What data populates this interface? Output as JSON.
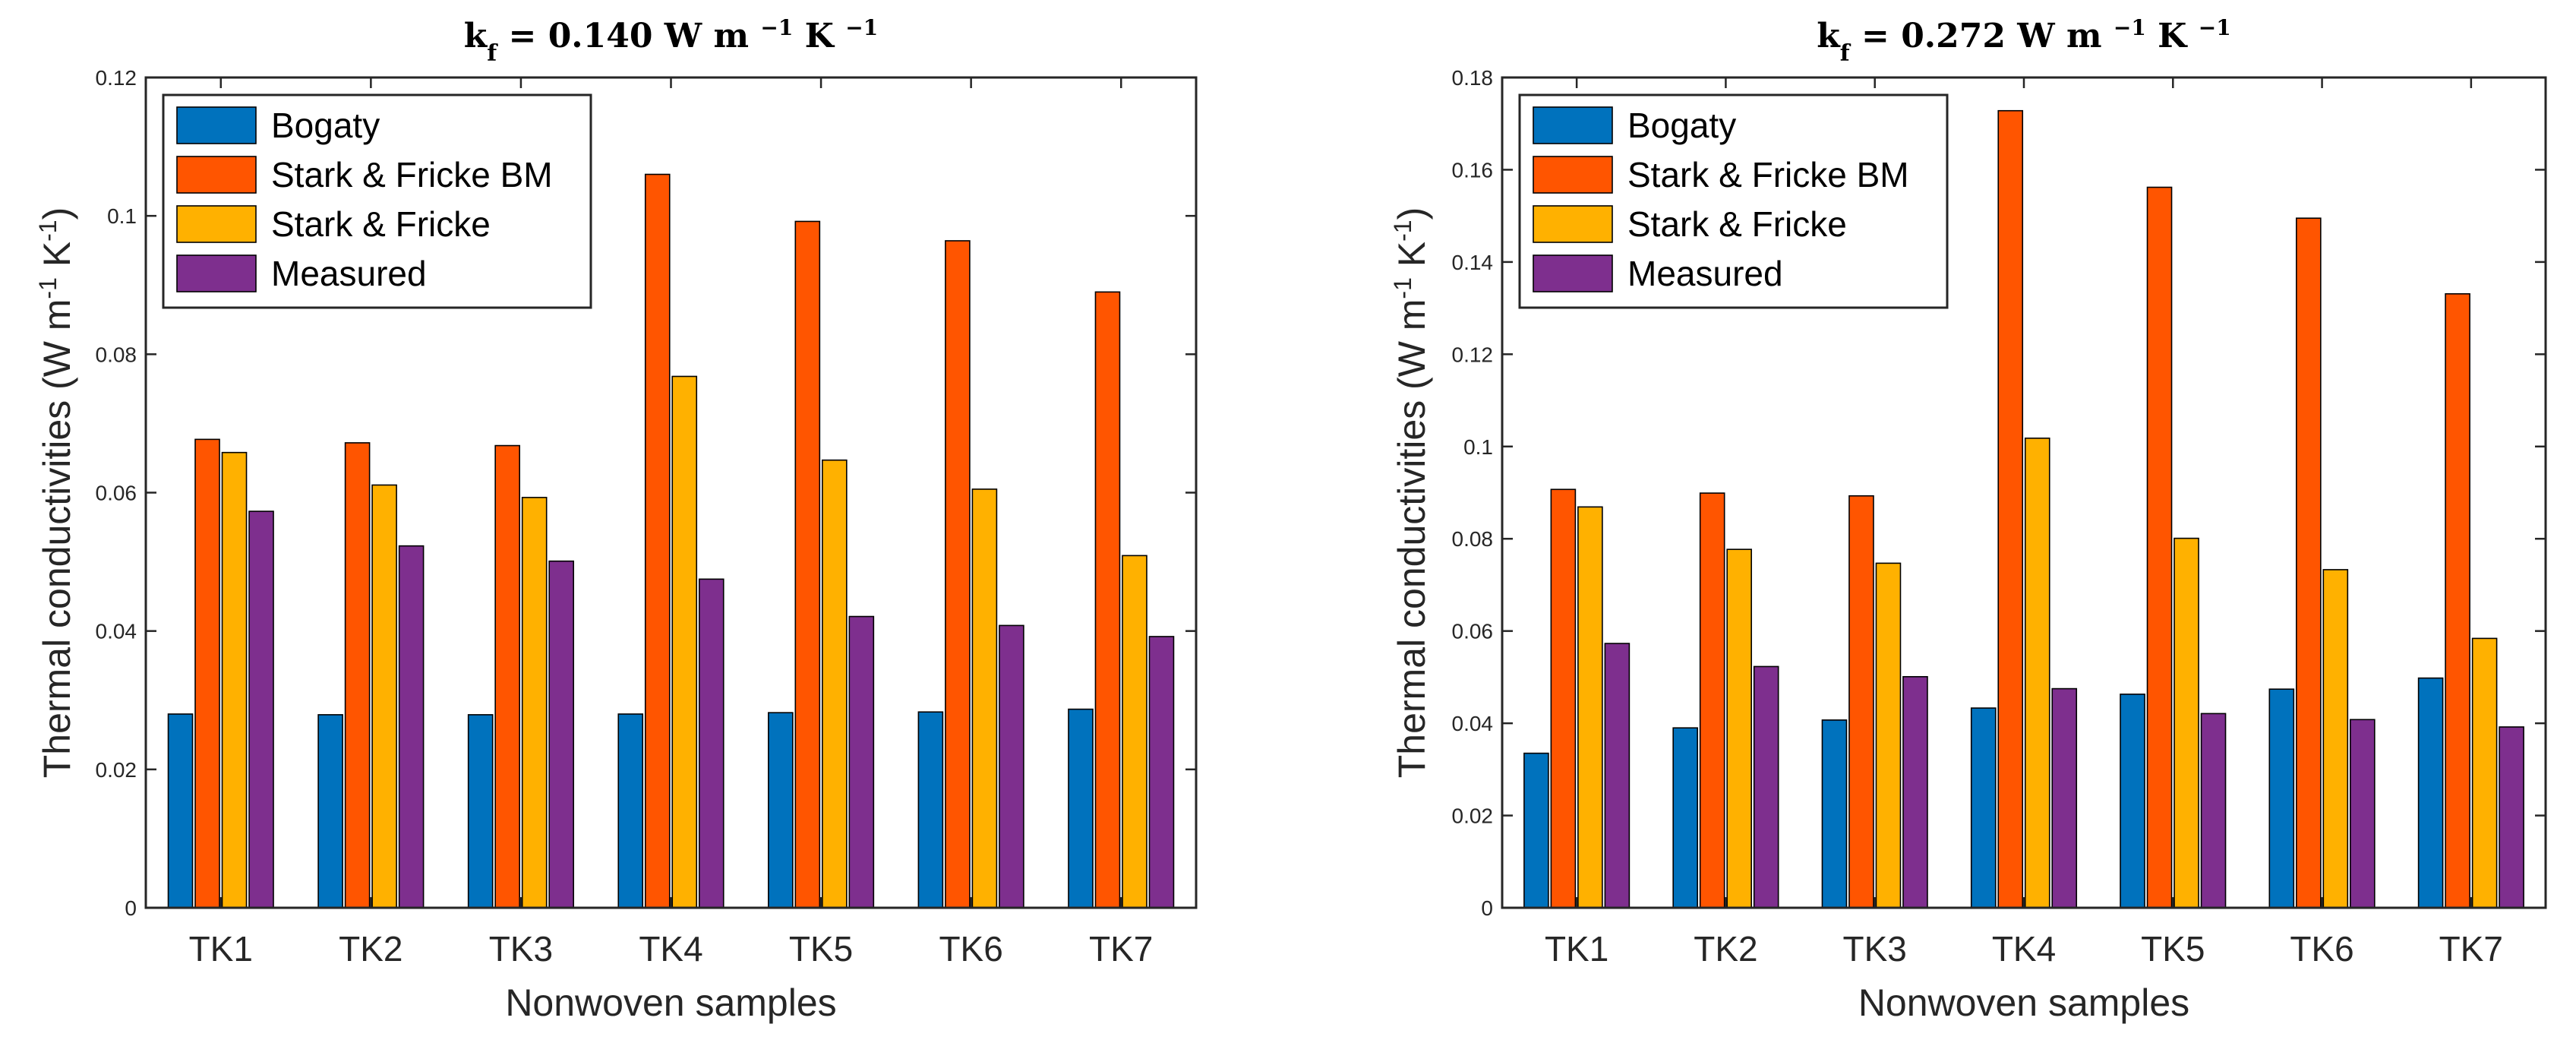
{
  "chart_data": [
    {
      "type": "bar",
      "title": "k_f = 0.140 W m^-1 K^-1",
      "title_parts": {
        "k": "k",
        "sub": "f",
        "eq": " = 0.140 W  m ",
        "sup1": "−1",
        "mid": " K ",
        "sup2": "−1"
      },
      "xlabel": "Nonwoven samples",
      "ylabel": "Thermal conductivities (W m^-1 K^-1)",
      "ylabel_parts": {
        "main": "Thermal conductivities (W m",
        "sup1": "-1",
        "mid": " K",
        "sup2": "-1",
        "end": ")"
      },
      "ylim": [
        0,
        0.12
      ],
      "yticks": [
        0,
        0.02,
        0.04,
        0.06,
        0.08,
        0.1,
        0.12
      ],
      "ytick_labels": [
        "0",
        "0.02",
        "0.04",
        "0.06",
        "0.08",
        "0.1",
        "0.12"
      ],
      "categories": [
        "TK1",
        "TK2",
        "TK3",
        "TK4",
        "TK5",
        "TK6",
        "TK7"
      ],
      "legend_position": "top-left",
      "series": [
        {
          "name": "Bogaty",
          "color": "#0072BD",
          "values": [
            0.028,
            0.0279,
            0.0279,
            0.028,
            0.0282,
            0.0283,
            0.0287
          ]
        },
        {
          "name": "Stark & Fricke BM",
          "color": "#FF5500",
          "values": [
            0.0677,
            0.0672,
            0.0668,
            0.106,
            0.0992,
            0.0964,
            0.089
          ]
        },
        {
          "name": "Stark & Fricke",
          "color": "#FFB100",
          "values": [
            0.0658,
            0.0611,
            0.0593,
            0.0768,
            0.0647,
            0.0605,
            0.0509
          ]
        },
        {
          "name": "Measured",
          "color": "#7E2F8E",
          "values": [
            0.0573,
            0.0523,
            0.0501,
            0.0475,
            0.0421,
            0.0408,
            0.0392
          ]
        }
      ]
    },
    {
      "type": "bar",
      "title": "k_f = 0.272 W m^-1 K^-1",
      "title_parts": {
        "k": "k",
        "sub": "f",
        "eq": " = 0.272 W  m ",
        "sup1": "−1",
        "mid": " K ",
        "sup2": "−1"
      },
      "xlabel": "Nonwoven samples",
      "ylabel": "Thermal conductivities (W m^-1 K^-1)",
      "ylabel_parts": {
        "main": "Thermal conductivities (W m",
        "sup1": "-1",
        "mid": " K",
        "sup2": "-1",
        "end": ")"
      },
      "ylim": [
        0,
        0.18
      ],
      "yticks": [
        0,
        0.02,
        0.04,
        0.06,
        0.08,
        0.1,
        0.12,
        0.14,
        0.16,
        0.18
      ],
      "ytick_labels": [
        "0",
        "0.02",
        "0.04",
        "0.06",
        "0.08",
        "0.1",
        "0.12",
        "0.14",
        "0.16",
        "0.18"
      ],
      "categories": [
        "TK1",
        "TK2",
        "TK3",
        "TK4",
        "TK5",
        "TK6",
        "TK7"
      ],
      "legend_position": "top-left",
      "series": [
        {
          "name": "Bogaty",
          "color": "#0072BD",
          "values": [
            0.0335,
            0.039,
            0.0407,
            0.0433,
            0.0463,
            0.0474,
            0.0498
          ]
        },
        {
          "name": "Stark & Fricke BM",
          "color": "#FF5500",
          "values": [
            0.0907,
            0.0899,
            0.0893,
            0.1728,
            0.1562,
            0.1495,
            0.1331
          ]
        },
        {
          "name": "Stark & Fricke",
          "color": "#FFB100",
          "values": [
            0.0869,
            0.0777,
            0.0747,
            0.1018,
            0.0801,
            0.0733,
            0.0584
          ]
        },
        {
          "name": "Measured",
          "color": "#7E2F8E",
          "values": [
            0.0573,
            0.0523,
            0.0501,
            0.0475,
            0.0421,
            0.0408,
            0.0392
          ]
        }
      ]
    }
  ]
}
